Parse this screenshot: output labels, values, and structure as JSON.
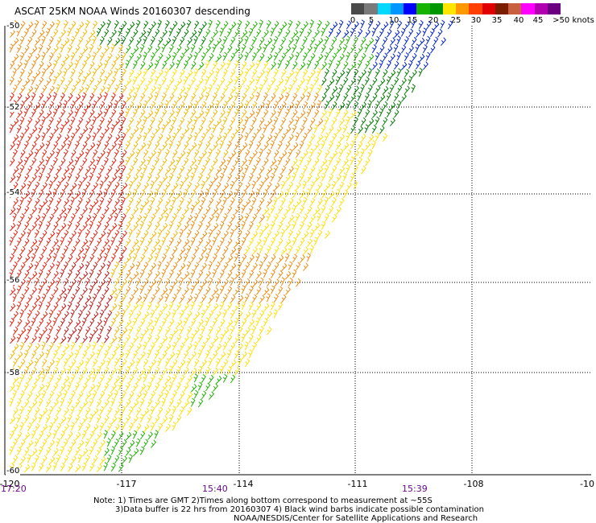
{
  "title": "ASCAT 25KM NOAA Winds 20160307 descending",
  "scale": {
    "colors": [
      "#4a4a4a",
      "#7a7a7a",
      "#00d8ff",
      "#0096ff",
      "#0000ff",
      "#16b400",
      "#009600",
      "#ffe600",
      "#ff9800",
      "#ff4000",
      "#e00000",
      "#7a1e00",
      "#c86040",
      "#ff00ff",
      "#b000b0",
      "#6a0080"
    ],
    "labels": [
      "0",
      "5",
      "10",
      "15",
      "20",
      "25",
      "30",
      "35",
      "40",
      "45",
      ">50 knots"
    ]
  },
  "map": {
    "lat_labels": [
      "-50",
      "-52",
      "-54",
      "-56",
      "-58",
      "-60"
    ],
    "lon_labels": [
      "-120",
      "-117",
      "-114",
      "-111",
      "-108",
      "-10"
    ],
    "time_labels": [
      "17:20",
      "15:40",
      "15:39"
    ]
  },
  "wind_colors": {
    "red": "#e52010",
    "darkred": "#c01818",
    "orange": "#f08c10",
    "yelloworange": "#f5b800",
    "yellow": "#ffe000",
    "green": "#20b000",
    "darkgreen": "#007a00",
    "blue": "#0020c8"
  },
  "notes": [
    "Note: 1) Times are GMT 2)Times along bottom correspond to measurement at ~55S",
    "3)Data buffer is 22 hrs from 20160307 4) Black wind barbs indicate possible contamination",
    "NOAA/NESDIS/Center for Satellite Applications and Research"
  ]
}
